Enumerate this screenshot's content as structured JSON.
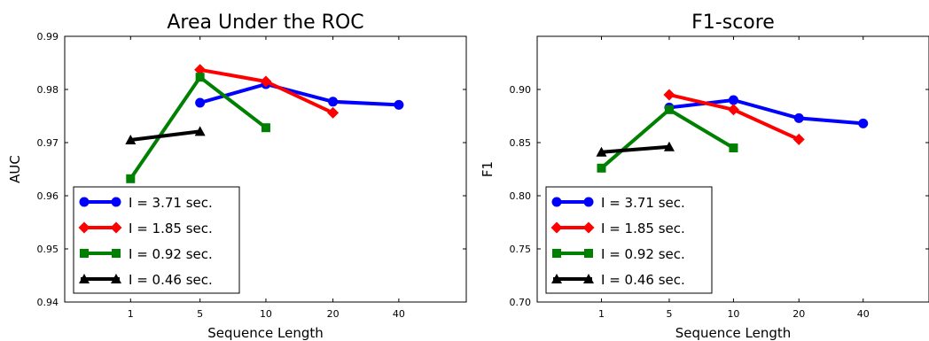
{
  "chart_data": [
    {
      "type": "line",
      "title": "Area Under the ROC",
      "xlabel": "Sequence Length",
      "ylabel": "AUC",
      "xticks": [
        "1",
        "5",
        "10",
        "20",
        "40"
      ],
      "ylim": [
        0.94,
        0.99
      ],
      "yticks": [
        "0.94",
        "0.95",
        "0.96",
        "0.97",
        "0.98",
        "0.99"
      ],
      "grid": false,
      "legend": "lower-left",
      "series": [
        {
          "name": "I = 3.71 sec.",
          "color": "#0000ff",
          "marker": "circle",
          "x": [
            "5",
            "10",
            "20",
            "40"
          ],
          "y": [
            0.9775,
            0.981,
            0.9777,
            0.9771
          ]
        },
        {
          "name": "I = 1.85 sec.",
          "color": "#ff0000",
          "marker": "diamond",
          "x": [
            "5",
            "10",
            "20"
          ],
          "y": [
            0.9837,
            0.9815,
            0.9756
          ]
        },
        {
          "name": "I = 0.92 sec.",
          "color": "#008000",
          "marker": "square",
          "x": [
            "1",
            "5",
            "10"
          ],
          "y": [
            0.9632,
            0.9823,
            0.9728
          ]
        },
        {
          "name": "I = 0.46 sec.",
          "color": "#000000",
          "marker": "triangle",
          "x": [
            "1",
            "5"
          ],
          "y": [
            0.9705,
            0.9721
          ]
        }
      ]
    },
    {
      "type": "line",
      "title": "F1-score",
      "xlabel": "Sequence Length",
      "ylabel": "F1",
      "xticks": [
        "1",
        "5",
        "10",
        "20",
        "40"
      ],
      "ylim": [
        0.7,
        0.95
      ],
      "yticks": [
        "0.70",
        "0.75",
        "0.80",
        "0.85",
        "0.90"
      ],
      "grid": false,
      "legend": "lower-left",
      "series": [
        {
          "name": "I = 3.71 sec.",
          "color": "#0000ff",
          "marker": "circle",
          "x": [
            "5",
            "10",
            "20",
            "40"
          ],
          "y": [
            0.883,
            0.89,
            0.873,
            0.868
          ]
        },
        {
          "name": "I = 1.85 sec.",
          "color": "#ff0000",
          "marker": "diamond",
          "x": [
            "5",
            "10",
            "20"
          ],
          "y": [
            0.895,
            0.881,
            0.853
          ]
        },
        {
          "name": "I = 0.92 sec.",
          "color": "#008000",
          "marker": "square",
          "x": [
            "1",
            "5",
            "10"
          ],
          "y": [
            0.826,
            0.881,
            0.845
          ]
        },
        {
          "name": "I = 0.46 sec.",
          "color": "#000000",
          "marker": "triangle",
          "x": [
            "1",
            "5"
          ],
          "y": [
            0.841,
            0.846
          ]
        }
      ]
    }
  ]
}
